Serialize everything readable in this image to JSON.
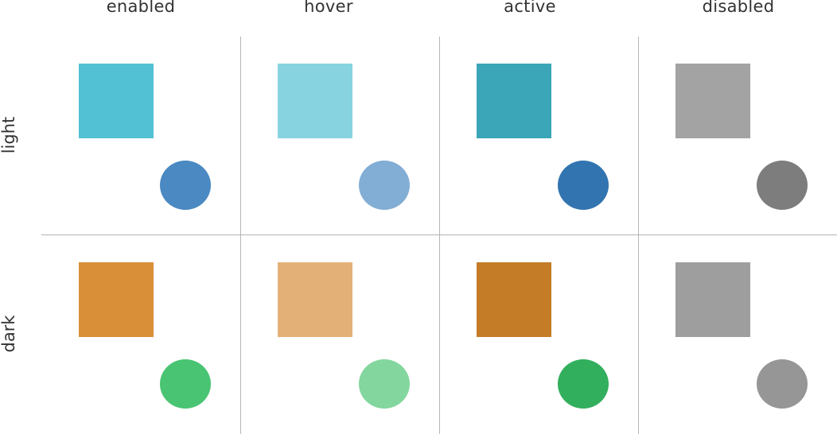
{
  "columns": [
    "enabled",
    "hover",
    "active",
    "disabled"
  ],
  "rows": [
    "light",
    "dark"
  ],
  "grid": [
    [
      {
        "state": "enabled",
        "square_color": "#52C1D4",
        "circle_color": "#4A89C2"
      },
      {
        "state": "hover",
        "square_color": "#87D4E0",
        "circle_color": "#82ADD4"
      },
      {
        "state": "active",
        "square_color": "#3AA6B7",
        "circle_color": "#3274B0"
      },
      {
        "state": "disabled",
        "square_color": "#A3A3A3",
        "circle_color": "#7D7D7D"
      }
    ],
    [
      {
        "state": "enabled",
        "square_color": "#D98F38",
        "circle_color": "#49C472"
      },
      {
        "state": "hover",
        "square_color": "#E3B177",
        "circle_color": "#83D69E"
      },
      {
        "state": "active",
        "square_color": "#C47C27",
        "circle_color": "#32AF5D"
      },
      {
        "state": "disabled",
        "square_color": "#9E9E9E",
        "circle_color": "#969696"
      }
    ]
  ]
}
